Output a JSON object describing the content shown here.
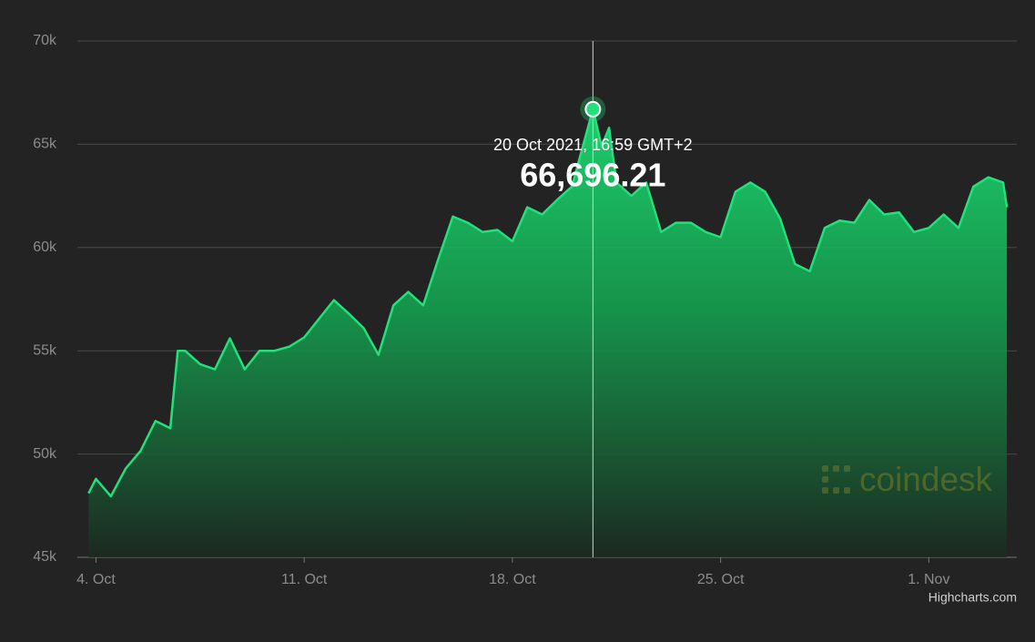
{
  "chart_data": {
    "type": "area",
    "x": [
      "2021-10-03T18:00",
      "2021-10-04T00:00",
      "2021-10-04T12:00",
      "2021-10-05T00:00",
      "2021-10-05T12:00",
      "2021-10-06T00:00",
      "2021-10-06T12:00",
      "2021-10-06T18:00",
      "2021-10-07T00:00",
      "2021-10-07T12:00",
      "2021-10-08T00:00",
      "2021-10-08T12:00",
      "2021-10-09T00:00",
      "2021-10-09T12:00",
      "2021-10-10T00:00",
      "2021-10-10T12:00",
      "2021-10-11T00:00",
      "2021-10-11T12:00",
      "2021-10-12T00:00",
      "2021-10-12T12:00",
      "2021-10-13T00:00",
      "2021-10-13T12:00",
      "2021-10-14T00:00",
      "2021-10-14T12:00",
      "2021-10-15T00:00",
      "2021-10-15T12:00",
      "2021-10-16T00:00",
      "2021-10-16T12:00",
      "2021-10-17T00:00",
      "2021-10-17T12:00",
      "2021-10-18T00:00",
      "2021-10-18T12:00",
      "2021-10-19T00:00",
      "2021-10-19T12:00",
      "2021-10-20T00:00",
      "2021-10-20T16:59",
      "2021-10-21T00:00",
      "2021-10-21T06:00",
      "2021-10-21T12:00",
      "2021-10-22T00:00",
      "2021-10-22T12:00",
      "2021-10-23T00:00",
      "2021-10-23T12:00",
      "2021-10-24T00:00",
      "2021-10-24T12:00",
      "2021-10-25T00:00",
      "2021-10-25T12:00",
      "2021-10-26T00:00",
      "2021-10-26T12:00",
      "2021-10-27T00:00",
      "2021-10-27T12:00",
      "2021-10-28T00:00",
      "2021-10-28T12:00",
      "2021-10-29T00:00",
      "2021-10-29T12:00",
      "2021-10-30T00:00",
      "2021-10-30T12:00",
      "2021-10-31T00:00",
      "2021-10-31T12:00",
      "2021-11-01T00:00",
      "2021-11-01T12:00",
      "2021-11-02T00:00",
      "2021-11-02T12:00",
      "2021-11-03T00:00",
      "2021-11-03T12:00",
      "2021-11-03T15:00"
    ],
    "series": [
      {
        "color": "#22e07a",
        "values": [
          48100,
          48800,
          47950,
          49300,
          50150,
          51600,
          51250,
          55000,
          55000,
          54350,
          54100,
          55600,
          54100,
          55000,
          55000,
          55200,
          55650,
          56550,
          57450,
          56800,
          56100,
          54800,
          57200,
          57850,
          57200,
          59400,
          61500,
          61200,
          60750,
          60850,
          60300,
          61950,
          61600,
          62300,
          62950,
          66696.21,
          64900,
          65800,
          63150,
          62500,
          63150,
          60750,
          61200,
          61200,
          60750,
          60500,
          62700,
          63150,
          62700,
          61400,
          59200,
          58850,
          60950,
          61300,
          61200,
          62300,
          61600,
          61700,
          60750,
          60950,
          61600,
          60950,
          62950,
          63400,
          63150,
          61950
        ]
      }
    ],
    "xlim": [
      "2021-10-03T09:00",
      "2021-11-03T23:00"
    ],
    "xticks": [
      {
        "value": "2021-10-04T00:00",
        "label": "4. Oct"
      },
      {
        "value": "2021-10-11T00:00",
        "label": "11. Oct"
      },
      {
        "value": "2021-10-18T00:00",
        "label": "18. Oct"
      },
      {
        "value": "2021-10-25T00:00",
        "label": "25. Oct"
      },
      {
        "value": "2021-11-01T00:00",
        "label": "1. Nov"
      }
    ],
    "ylim": [
      45000,
      70000
    ],
    "yticks": [
      {
        "value": 45000,
        "label": "45k"
      },
      {
        "value": 50000,
        "label": "50k"
      },
      {
        "value": 55000,
        "label": "55k"
      },
      {
        "value": 60000,
        "label": "60k"
      },
      {
        "value": 65000,
        "label": "65k"
      },
      {
        "value": 70000,
        "label": "70k"
      }
    ],
    "grid": true,
    "tooltip": {
      "x": "2021-10-20T16:59",
      "value": 66696.21,
      "date_label": "20 Oct 2021, 16:59 GMT+2",
      "value_label": "66,696.21"
    },
    "watermark": "coindesk",
    "credits": "Highcharts.com"
  }
}
